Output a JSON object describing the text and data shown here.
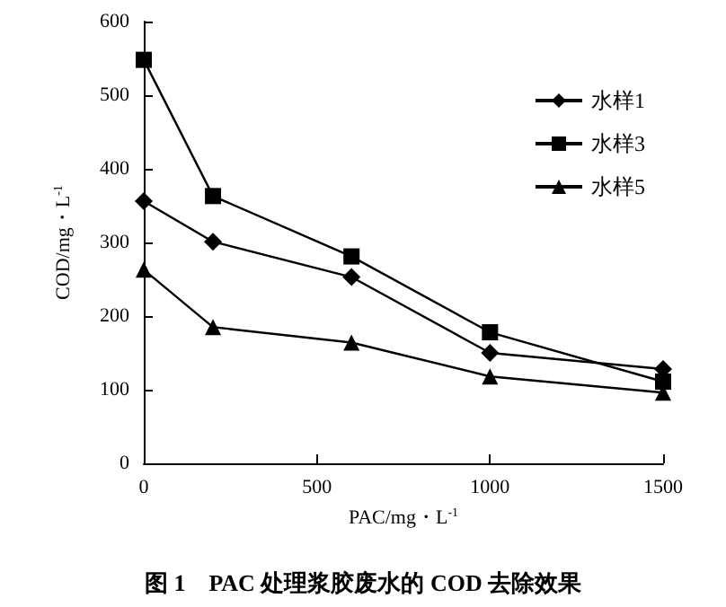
{
  "chart_data": {
    "type": "line",
    "title": "图 1　PAC 处理浆胶废水的 COD 去除效果",
    "xlabel": "PAC/mg・L$^{-1}$",
    "ylabel": "COD/mg・L$^{-1}$",
    "x": [
      0,
      200,
      600,
      1000,
      1500
    ],
    "series": [
      {
        "name": "水样1",
        "color": "#000000",
        "marker": "diamond",
        "values": [
          356,
          301,
          253,
          150,
          128
        ]
      },
      {
        "name": "水样3",
        "color": "#000000",
        "marker": "square",
        "values": [
          548,
          363,
          281,
          178,
          111
        ]
      },
      {
        "name": "水样5",
        "color": "#000000",
        "marker": "triangle",
        "values": [
          263,
          185,
          164,
          118,
          96
        ]
      }
    ],
    "xlim": [
      0,
      1500
    ],
    "xticks": [
      0,
      500,
      1000,
      1500
    ],
    "ylim": [
      0,
      600
    ],
    "yticks": [
      0,
      100,
      200,
      300,
      400,
      500,
      600
    ],
    "grid": false,
    "legend": "top right",
    "line_style": "solid"
  }
}
